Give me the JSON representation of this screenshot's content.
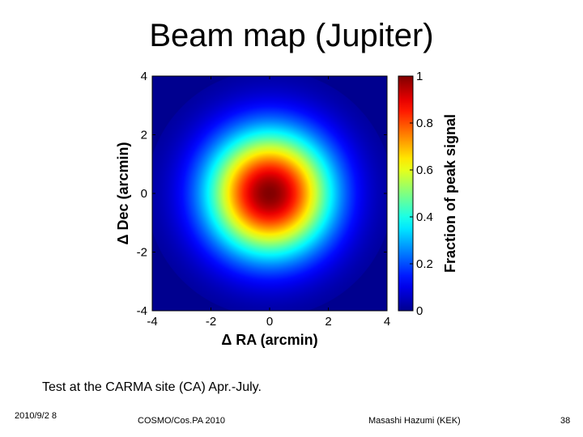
{
  "slide": {
    "title": "Beam map (Jupiter)",
    "caption": "Test at the CARMA site (CA) Apr.-July.",
    "footer": {
      "date": "2010/9/2 8",
      "conference": "COSMO/Cos.PA 2010",
      "author": "Masashi Hazumi (KEK)",
      "page": "38"
    }
  },
  "chart_data": {
    "type": "heatmap",
    "xlabel": "Δ RA (arcmin)",
    "ylabel": "Δ Dec (arcmin)",
    "xlim": [
      -4,
      4
    ],
    "ylim": [
      -4,
      4
    ],
    "x_ticks": [
      "-4",
      "-2",
      "0",
      "2",
      "4"
    ],
    "y_ticks": [
      "-4",
      "-2",
      "0",
      "2",
      "4"
    ],
    "colorbar": {
      "label": "Fraction of peak signal",
      "range": [
        0,
        1
      ],
      "ticks": [
        "0",
        "0.2",
        "0.4",
        "0.6",
        "0.8",
        "1"
      ],
      "colormap": "jet"
    },
    "beam": {
      "peak": 1.0,
      "center": [
        0,
        0
      ],
      "fwhm_arcmin": 3.5,
      "background": 0.0
    },
    "colors": {
      "jet": [
        "#00008f",
        "#0000ff",
        "#0080ff",
        "#00ffff",
        "#80ff80",
        "#ffff00",
        "#ff8000",
        "#ff0000",
        "#800000"
      ]
    }
  }
}
